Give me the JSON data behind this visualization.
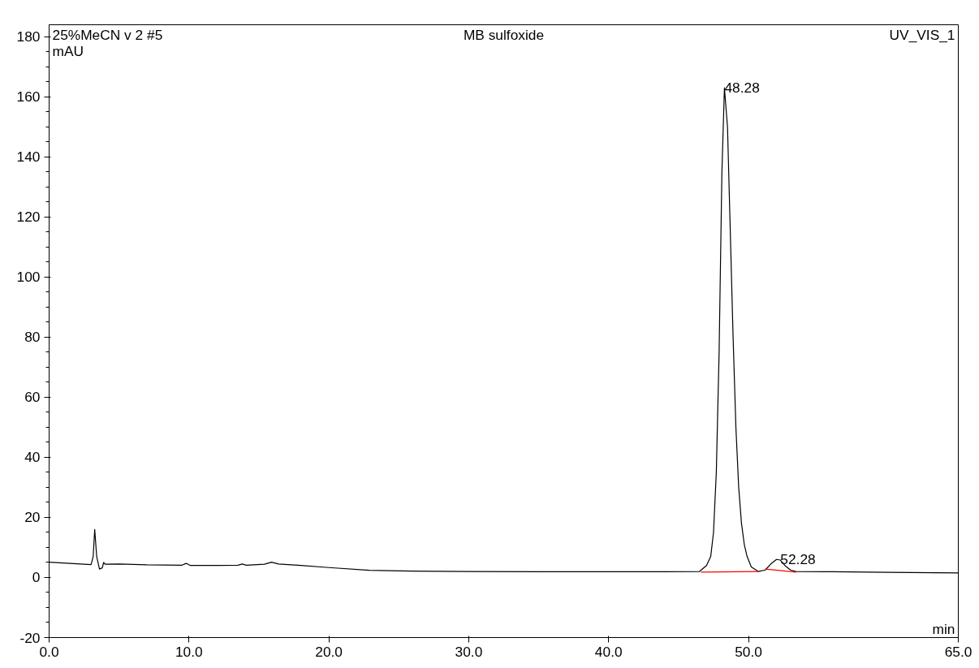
{
  "chart_data": {
    "type": "line",
    "title": "MB sulfoxide",
    "xlabel": "min",
    "ylabel": "mAU",
    "annotations": [
      "25%MeCN v 2 #5",
      "UV_VIS_1",
      {
        "text": "48.28",
        "x": 48.28,
        "y": 163
      },
      {
        "text": "52.28",
        "x": 52.28,
        "y": 6
      }
    ],
    "series": [
      {
        "color": "#000000",
        "x": [
          0,
          3.0,
          3.15,
          3.26,
          3.4,
          3.6,
          3.8,
          3.9,
          4.0,
          5.0,
          7.0,
          9.5,
          9.8,
          10.1,
          12.0,
          13.5,
          13.8,
          14.1,
          15.4,
          15.9,
          16.4,
          18.0,
          20.0,
          22.9,
          26.0,
          30.0,
          35.0,
          40.0,
          44.0,
          46.5,
          47.0,
          47.3,
          47.5,
          47.7,
          47.9,
          48.1,
          48.28,
          48.5,
          48.7,
          48.9,
          49.1,
          49.3,
          49.5,
          49.7,
          49.9,
          50.2,
          50.7,
          51.2,
          51.6,
          52.0,
          52.28,
          52.6,
          53.0,
          53.4,
          56.0,
          60.0,
          65.0
        ],
        "values": [
          5.1,
          4.3,
          7,
          16,
          7,
          2.8,
          3.2,
          5,
          4.4,
          4.5,
          4.2,
          4.1,
          4.7,
          4,
          4,
          4.1,
          4.5,
          4.1,
          4.4,
          5.1,
          4.5,
          4.0,
          3.3,
          2.4,
          2.1,
          2.0,
          1.9,
          1.9,
          1.9,
          2.0,
          4,
          7,
          15,
          35,
          75,
          135,
          163,
          150,
          115,
          80,
          50,
          30,
          18,
          11,
          7,
          3.5,
          2.0,
          2.5,
          4.5,
          6.0,
          5.8,
          4.0,
          2.5,
          2.0,
          1.9,
          1.7,
          1.5
        ]
      },
      {
        "color": "#ff0000",
        "x": [
          46.6,
          50.7
        ],
        "values": [
          1.8,
          2.0
        ]
      },
      {
        "color": "#ff0000",
        "x": [
          51.2,
          53.4
        ],
        "values": [
          2.8,
          1.8
        ]
      }
    ],
    "xlim": [
      0,
      65
    ],
    "ylim": [
      -20,
      184
    ],
    "xticks": [
      {
        "value": 0,
        "label": "0.0"
      },
      {
        "value": 10,
        "label": "10.0"
      },
      {
        "value": 20,
        "label": "20.0"
      },
      {
        "value": 30,
        "label": "30.0"
      },
      {
        "value": 40,
        "label": "40.0"
      },
      {
        "value": 50,
        "label": "50.0"
      },
      {
        "value": 65,
        "label": "65.0"
      }
    ],
    "yticks": [
      -20,
      0,
      20,
      40,
      60,
      80,
      100,
      120,
      140,
      160,
      180
    ],
    "grid": false,
    "marker": "none",
    "line_style": "solid"
  }
}
